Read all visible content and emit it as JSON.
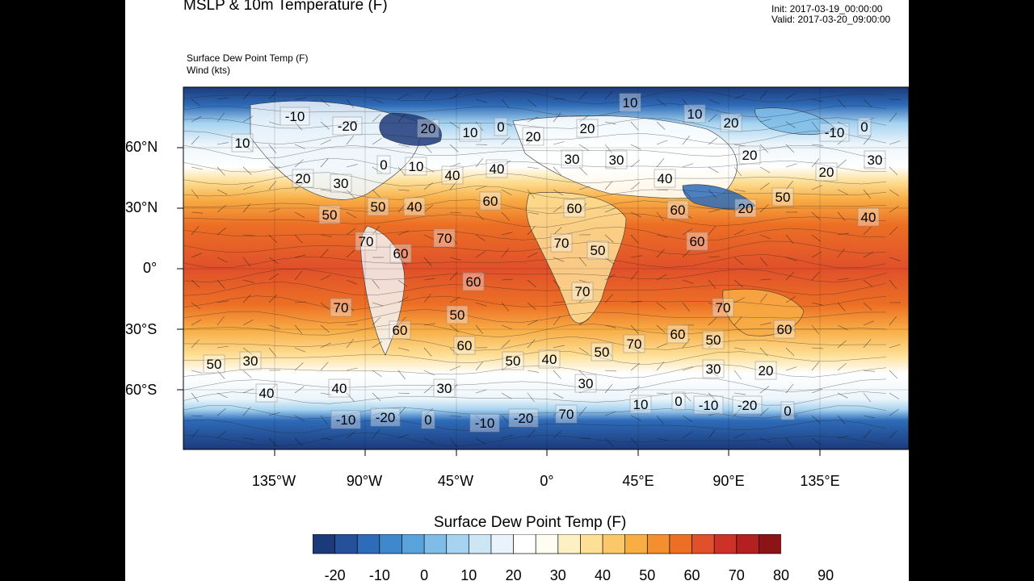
{
  "header": {
    "title": "MSLP & 10m Temperature (F)",
    "init": "Init: 2017-03-19_00:00:00",
    "valid": "Valid: 2017-03-20_09:00:00",
    "subtitle_1": "Surface Dew Point Temp    (F)",
    "subtitle_2": "Wind    (kts)"
  },
  "map": {
    "projection": "cylindrical equidistant",
    "lat_labels": [
      "60°N",
      "30°N",
      "0°",
      "30°S",
      "60°S"
    ],
    "lon_labels": [
      "135°W",
      "90°W",
      "45°W",
      "0°",
      "45°E",
      "90°E",
      "135°E"
    ],
    "contour_labels": [
      "-10",
      "-20",
      "20",
      "10",
      "0",
      "20",
      "20",
      "10",
      "10",
      "20",
      "-10",
      "0",
      "10",
      "0",
      "10",
      "40",
      "40",
      "30",
      "30",
      "40",
      "20",
      "20",
      "30",
      "20",
      "30",
      "60",
      "60",
      "50",
      "50",
      "40",
      "40",
      "50",
      "20",
      "60",
      "70",
      "70",
      "70",
      "50",
      "60",
      "60",
      "70",
      "60",
      "70",
      "50",
      "70",
      "60",
      "60",
      "70",
      "60",
      "50",
      "60",
      "50",
      "50",
      "40",
      "50",
      "30",
      "40",
      "30",
      "30",
      "40",
      "30",
      "20",
      "10",
      "0",
      "-10",
      "-20",
      "0",
      "-10",
      "-20",
      "0",
      "-10",
      "-20",
      "70"
    ]
  },
  "colorbar": {
    "title": "Surface Dew Point Temp  (F)",
    "tick_labels": [
      "-20",
      "-10",
      "0",
      "10",
      "20",
      "30",
      "40",
      "50",
      "60",
      "70",
      "80",
      "90"
    ],
    "colors": [
      "#1c3a7a",
      "#24519a",
      "#2e6bb8",
      "#4088cc",
      "#5aa2dc",
      "#7fbde8",
      "#a6d3f0",
      "#cde6f6",
      "#eaf3fb",
      "#ffffff",
      "#fdfdf2",
      "#fdf0c4",
      "#fddf96",
      "#fbc869",
      "#f8ad45",
      "#f38f30",
      "#ec6f25",
      "#e0502a",
      "#cc3227",
      "#b41f20",
      "#8c1417"
    ]
  }
}
